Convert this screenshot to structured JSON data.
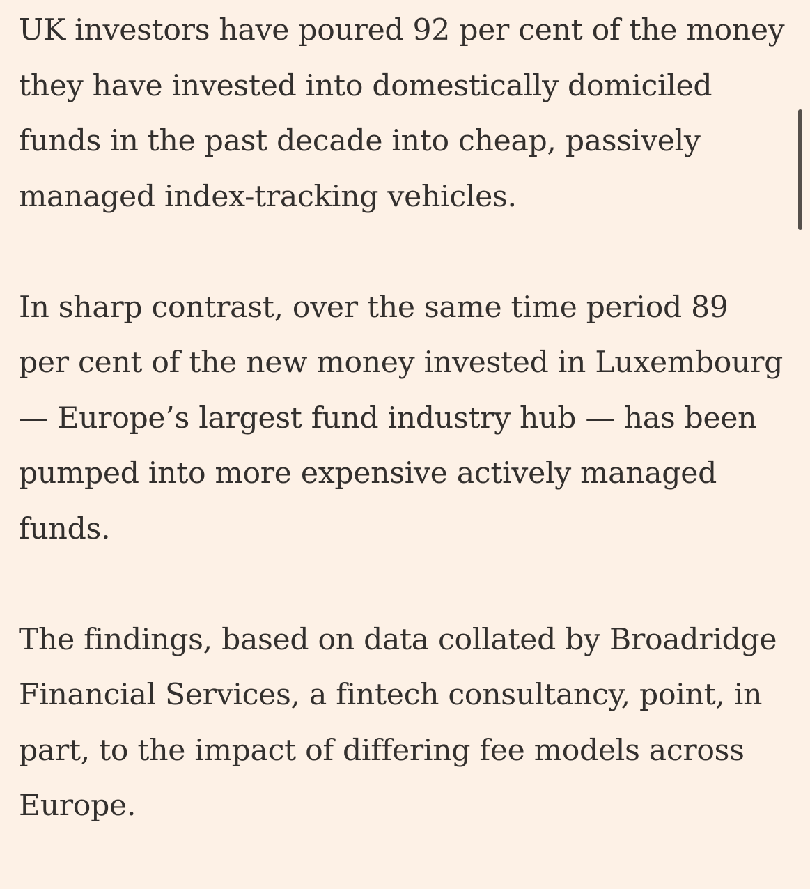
{
  "article": {
    "paragraphs": [
      {
        "lines": [
          "UK investors have poured 92 per cent of the money",
          "they have invested into domestically domiciled",
          "funds in the past decade into cheap, passively",
          "managed index-tracking vehicles."
        ]
      },
      {
        "lines": [
          "In sharp contrast, over the same time period 89",
          "per cent of the new money invested in Luxembourg",
          "— Europe’s largest fund industry hub — has been",
          "pumped into more expensive actively managed",
          "funds."
        ]
      },
      {
        "lines": [
          "The findings, based on data collated by Broadridge",
          "Financial Services, a fintech consultancy, point, in",
          "part, to the impact of differing fee models across",
          "Europe."
        ]
      }
    ]
  },
  "colors": {
    "background": "#fdf1e6",
    "text": "#33302e",
    "scrollbar": "#55504b"
  }
}
